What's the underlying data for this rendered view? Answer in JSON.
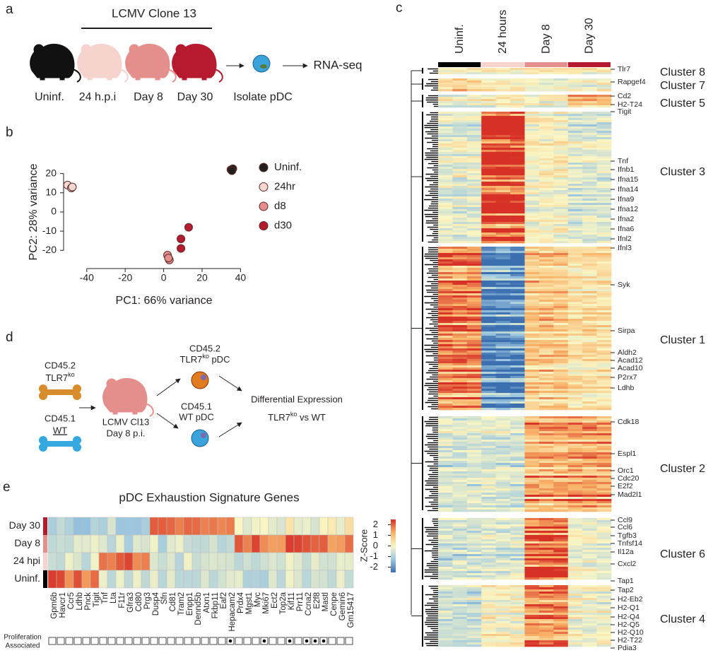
{
  "panel_labels": [
    "a",
    "b",
    "c",
    "d",
    "e"
  ],
  "panel_a": {
    "title": "LCMV Clone 13",
    "groups": [
      "Uninf.",
      "24 h.p.i",
      "Day 8",
      "Day 30"
    ],
    "step": "Isolate pDC",
    "output": "RNA-seq"
  },
  "chart_data": {
    "type": "scatter",
    "xlabel": "PC1: 66% variance",
    "ylabel": "PC2: 28% variance",
    "xlim": [
      -55,
      45
    ],
    "ylim": [
      -28,
      25
    ],
    "xticks": [
      -40,
      -20,
      0,
      20,
      40
    ],
    "yticks": [
      -20,
      -10,
      0,
      10,
      20
    ],
    "series": [
      {
        "name": "Uninf.",
        "color": "#231f20",
        "x": [
          35,
          36,
          35.5
        ],
        "y": [
          22,
          22.5,
          21.5
        ]
      },
      {
        "name": "24hr",
        "color": "#f7d7d0",
        "x": [
          -50,
          -48,
          -47.5
        ],
        "y": [
          14,
          12.5,
          13
        ]
      },
      {
        "name": "d8",
        "color": "#e58f8c",
        "x": [
          2,
          3,
          2.5
        ],
        "y": [
          -22.5,
          -25,
          -24
        ]
      },
      {
        "name": "d30",
        "color": "#b51a2f",
        "x": [
          9,
          9,
          13
        ],
        "y": [
          -14,
          -19,
          -8
        ]
      }
    ]
  },
  "panel_c": {
    "columns": [
      "Uninf.",
      "24 hours",
      "Day 8",
      "Day 30"
    ],
    "clusters": [
      {
        "name": "Cluster 8",
        "genes": [
          "Tlr7"
        ]
      },
      {
        "name": "Cluster 7",
        "genes": [
          "Rapgef4"
        ]
      },
      {
        "name": "Cluster 5",
        "genes": [
          "Cd2",
          "H2-T24"
        ]
      },
      {
        "name": "Cluster 3",
        "genes": [
          "Tigit",
          "Tnf",
          "Ifnb1",
          "Ifna15",
          "Ifna14",
          "Ifna9",
          "Ifna12",
          "Ifna2",
          "Ifna6",
          "Ifnl2",
          "Ifnl3"
        ]
      },
      {
        "name": "Cluster 1",
        "genes": [
          "Syk",
          "Sirpa",
          "Aldh2",
          "Acad12",
          "Acad10",
          "P2rx7",
          "Ldhb"
        ]
      },
      {
        "name": "Cluster 2",
        "genes": [
          "Cdk18",
          "Espl1",
          "Orc1",
          "Cdc20",
          "E2f2",
          "Mad2l1"
        ]
      },
      {
        "name": "Cluster 6",
        "genes": [
          "Ccl9",
          "Ccl6",
          "Tgfb3",
          "Tnfsf14",
          "Il12a",
          "Cxcl2"
        ]
      },
      {
        "name": "Cluster 4",
        "genes": [
          "Tap1",
          "Tap2",
          "H2-Eb2",
          "H2-Q1",
          "H2-Q4",
          "H2-Q5",
          "H2-Q10",
          "H2-T22",
          "Pdia3"
        ]
      }
    ]
  },
  "panel_d": {
    "donor_ko": {
      "marker": "CD45.2",
      "strain": {
        "base": "TLR7",
        "sup": "ko"
      }
    },
    "donor_wt": {
      "marker": "CD45.1",
      "strain": "WT"
    },
    "host": [
      "LCMV Cl13",
      "Day 8 p.i."
    ],
    "cell_ko": {
      "marker": "CD45.2",
      "base": "TLR7",
      "sup": "ko",
      "rest": " pDC"
    },
    "cell_wt": {
      "marker": "CD45.1",
      "label": "WT pDC"
    },
    "result": {
      "title": "Differential Expression",
      "base": "TLR7",
      "sup": "ko",
      "rest": " vs WT"
    }
  },
  "panel_e": {
    "title": "pDC Exhaustion Signature Genes",
    "rows": [
      "Day 30",
      "Day 8",
      "24 hpi",
      "Uninf."
    ],
    "genes": [
      "Gpm6b",
      "Havcr1",
      "Ccr5",
      "Ldhb",
      "Pnck",
      "Tigit",
      "Tnf",
      "Lta",
      "F11r",
      "Gfra3",
      "Cd80",
      "Prg3",
      "Dusp4",
      "Sfn",
      "Cd81",
      "Tram2",
      "Enpp1",
      "Dennd5b",
      "Atxn1",
      "Fkbp11",
      "Eaf2",
      "Hepacam2",
      "Prdx4",
      "Mgst1",
      "Myc",
      "Mki67",
      "Ect2",
      "Top2a",
      "Kif11",
      "Prr11",
      "Ccna2",
      "E2f8",
      "Mastl",
      "Cenpe",
      "Gemin6",
      "Gm15417"
    ],
    "proliferation_associated": [
      false,
      false,
      false,
      false,
      false,
      false,
      false,
      false,
      false,
      false,
      false,
      false,
      false,
      false,
      false,
      false,
      false,
      false,
      false,
      false,
      false,
      true,
      false,
      false,
      false,
      true,
      false,
      false,
      true,
      false,
      true,
      true,
      true,
      false,
      false,
      false
    ],
    "proliferation_label": [
      "Proliferation",
      "Associated"
    ],
    "colorbar_label": "Z-Score",
    "colorbar_ticks": [
      2,
      1,
      0,
      -1,
      -2
    ]
  }
}
